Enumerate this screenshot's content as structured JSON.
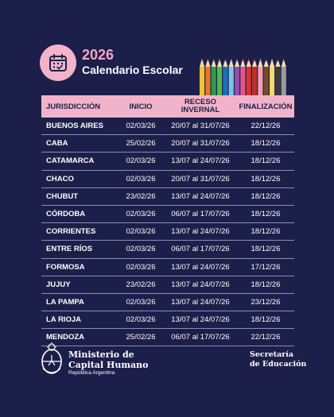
{
  "header": {
    "year": "2026",
    "title": "Calendario Escolar",
    "icon": "calendar-icon",
    "decoration": "colored-pencils-icon"
  },
  "colors": {
    "background": "#1c1f4a",
    "accent_pink": "#f1b3c9",
    "row_divider": "#8a8fb3"
  },
  "table": {
    "headers": {
      "jurisdiccion": "JURISDICCIÓN",
      "inicio": "INICIO",
      "receso_l1": "RECESO",
      "receso_l2": "INVERNAL",
      "finalizacion": "FINALIZACIÓN"
    },
    "rows": [
      {
        "jurisdiccion": "BUENOS AIRES",
        "inicio": "02/03/26",
        "receso": "20/07 al 31/07/26",
        "finalizacion": "22/12/26"
      },
      {
        "jurisdiccion": "CABA",
        "inicio": "25/02/26",
        "receso": "20/07 al 31/07/26",
        "finalizacion": "18/12/26"
      },
      {
        "jurisdiccion": "CATAMARCA",
        "inicio": "02/03/26",
        "receso": "13/07 al 24/07/26",
        "finalizacion": "18/12/26"
      },
      {
        "jurisdiccion": "CHACO",
        "inicio": "02/03/26",
        "receso": "20/07 al 31/07/26",
        "finalizacion": "18/12/26"
      },
      {
        "jurisdiccion": "CHUBUT",
        "inicio": "23/02/26",
        "receso": "13/07 al 24/07/26",
        "finalizacion": "18/12/26"
      },
      {
        "jurisdiccion": "CÓRDOBA",
        "inicio": "02/03/26",
        "receso": "06/07 al 17/07/26",
        "finalizacion": "18/12/26"
      },
      {
        "jurisdiccion": "CORRIENTES",
        "inicio": "02/03/26",
        "receso": "13/07 al 24/07/26",
        "finalizacion": "18/12/26"
      },
      {
        "jurisdiccion": "ENTRE RÍOS",
        "inicio": "02/03/26",
        "receso": "06/07 al 17/07/26",
        "finalizacion": "18/12/26"
      },
      {
        "jurisdiccion": "FORMOSA",
        "inicio": "02/03/26",
        "receso": "13/07 al 24/07/26",
        "finalizacion": "17/12/26"
      },
      {
        "jurisdiccion": "JUJUY",
        "inicio": "23/02/26",
        "receso": "13/07 al 24/07/26",
        "finalizacion": "18/12/26"
      },
      {
        "jurisdiccion": "LA PAMPA",
        "inicio": "02/03/26",
        "receso": "13/07 al 24/07/26",
        "finalizacion": "23/12/26"
      },
      {
        "jurisdiccion": "LA RIOJA",
        "inicio": "02/03/26",
        "receso": "13/07 al 24/07/26",
        "finalizacion": "18/12/26"
      },
      {
        "jurisdiccion": "MENDOZA",
        "inicio": "25/02/26",
        "receso": "06/07 al 17/07/26",
        "finalizacion": "22/12/26"
      }
    ]
  },
  "footer": {
    "ministry_line1": "Ministerio de",
    "ministry_line2": "Capital Humano",
    "ministry_line3": "República Argentina",
    "ministry_icon": "argentina-coat-of-arms-icon",
    "secretariat_line1": "Secretaría",
    "secretariat_line2": "de Educación"
  }
}
